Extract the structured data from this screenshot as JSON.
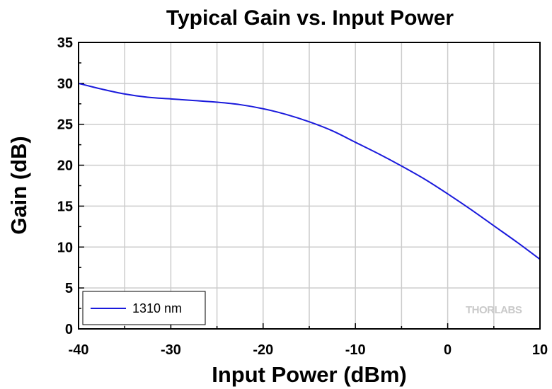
{
  "chart_data": {
    "type": "line",
    "title": "Typical Gain vs. Input Power",
    "xlabel": "Input Power (dBm)",
    "ylabel": "Gain (dB)",
    "xlim": [
      -40,
      10
    ],
    "ylim": [
      0,
      35
    ],
    "xticks": [
      -40,
      -30,
      -20,
      -10,
      0,
      10
    ],
    "yticks": [
      0,
      5,
      10,
      15,
      20,
      25,
      30,
      35
    ],
    "grid": true,
    "legend_position": "bottom-left",
    "series": [
      {
        "name": "1310 nm",
        "color": "#1a1adc",
        "x": [
          -40,
          -37.5,
          -35,
          -32.5,
          -30,
          -27.5,
          -25,
          -22.5,
          -20,
          -17.5,
          -15,
          -12.5,
          -10,
          -7.5,
          -5,
          -2.5,
          0,
          2.5,
          5,
          7.5,
          10
        ],
        "y": [
          30.0,
          29.3,
          28.7,
          28.3,
          28.1,
          27.9,
          27.7,
          27.4,
          26.9,
          26.2,
          25.3,
          24.2,
          22.8,
          21.4,
          19.9,
          18.3,
          16.5,
          14.6,
          12.6,
          10.6,
          8.5
        ]
      }
    ]
  },
  "watermark": "THORLABS"
}
